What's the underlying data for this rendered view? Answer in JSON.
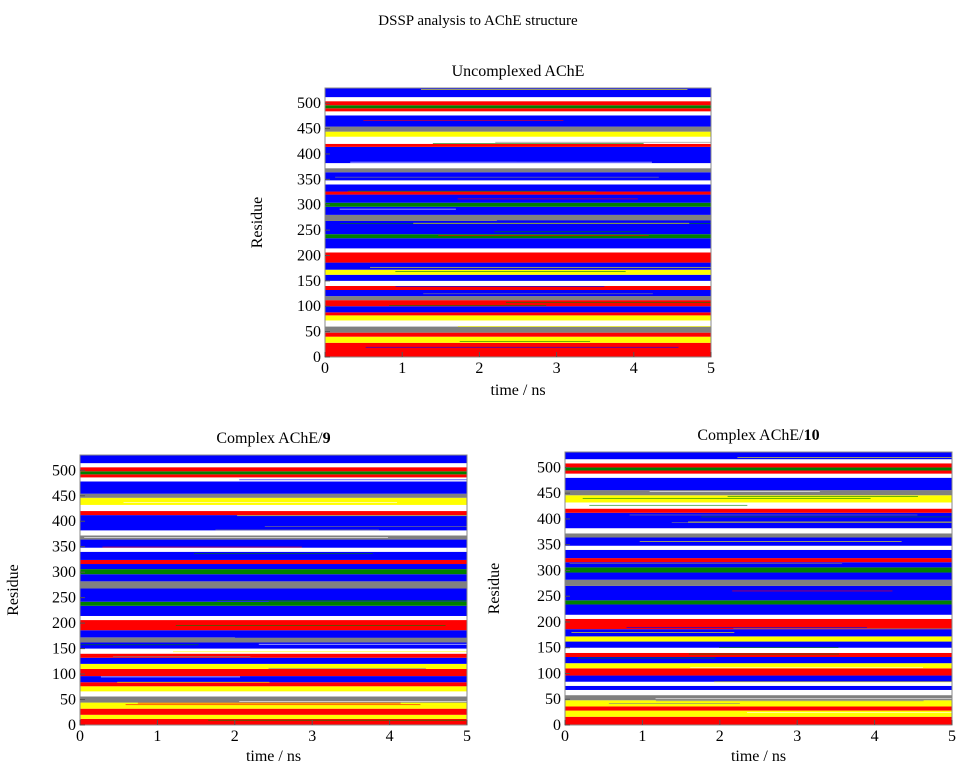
{
  "figure": {
    "title": "DSSP analysis to AChE structure"
  },
  "colors": {
    "coil": "#ffffff",
    "strand": "#ff0000",
    "bridge": "#000000",
    "bend": "#008000",
    "turn": "#ffff00",
    "alpha_helix": "#0000ff",
    "helix_5": "#800080",
    "helix_3": "#808080",
    "frame": "#888888"
  },
  "chart_data": [
    {
      "type": "heatmap",
      "title": "Uncomplexed AChE",
      "title_prefix": "Uncomplexed AChE",
      "title_bold": "",
      "xlabel": "time / ns",
      "ylabel": "Residue",
      "xlim": [
        0,
        5
      ],
      "ylim": [
        0,
        530
      ],
      "xticks": [
        0,
        1,
        2,
        3,
        4,
        5
      ],
      "yticks": [
        0,
        50,
        100,
        150,
        200,
        250,
        300,
        350,
        400,
        450,
        500
      ],
      "grid": false,
      "bands": [
        {
          "y": [
            0,
            28
          ],
          "ss": "strand"
        },
        {
          "y": [
            28,
            40
          ],
          "ss": "turn"
        },
        {
          "y": [
            40,
            48
          ],
          "ss": "strand"
        },
        {
          "y": [
            48,
            60
          ],
          "ss": "helix_3"
        },
        {
          "y": [
            60,
            72
          ],
          "ss": "coil"
        },
        {
          "y": [
            72,
            82
          ],
          "ss": "turn"
        },
        {
          "y": [
            82,
            88
          ],
          "ss": "strand"
        },
        {
          "y": [
            88,
            100
          ],
          "ss": "alpha_helix"
        },
        {
          "y": [
            100,
            112
          ],
          "ss": "strand"
        },
        {
          "y": [
            112,
            120
          ],
          "ss": "helix_3"
        },
        {
          "y": [
            120,
            132
          ],
          "ss": "alpha_helix"
        },
        {
          "y": [
            132,
            140
          ],
          "ss": "strand"
        },
        {
          "y": [
            140,
            150
          ],
          "ss": "coil"
        },
        {
          "y": [
            150,
            162
          ],
          "ss": "alpha_helix"
        },
        {
          "y": [
            162,
            172
          ],
          "ss": "turn"
        },
        {
          "y": [
            172,
            186
          ],
          "ss": "alpha_helix"
        },
        {
          "y": [
            186,
            206
          ],
          "ss": "strand"
        },
        {
          "y": [
            206,
            214
          ],
          "ss": "coil"
        },
        {
          "y": [
            214,
            234
          ],
          "ss": "alpha_helix"
        },
        {
          "y": [
            234,
            242
          ],
          "ss": "bend"
        },
        {
          "y": [
            242,
            268
          ],
          "ss": "alpha_helix"
        },
        {
          "y": [
            268,
            280
          ],
          "ss": "helix_3"
        },
        {
          "y": [
            280,
            296
          ],
          "ss": "alpha_helix"
        },
        {
          "y": [
            296,
            304
          ],
          "ss": "bend"
        },
        {
          "y": [
            304,
            320
          ],
          "ss": "alpha_helix"
        },
        {
          "y": [
            320,
            326
          ],
          "ss": "strand"
        },
        {
          "y": [
            326,
            340
          ],
          "ss": "alpha_helix"
        },
        {
          "y": [
            340,
            348
          ],
          "ss": "coil"
        },
        {
          "y": [
            348,
            364
          ],
          "ss": "alpha_helix"
        },
        {
          "y": [
            364,
            372
          ],
          "ss": "helix_3"
        },
        {
          "y": [
            372,
            382
          ],
          "ss": "coil"
        },
        {
          "y": [
            382,
            414
          ],
          "ss": "alpha_helix"
        },
        {
          "y": [
            414,
            420
          ],
          "ss": "strand"
        },
        {
          "y": [
            420,
            434
          ],
          "ss": "coil"
        },
        {
          "y": [
            434,
            444
          ],
          "ss": "turn"
        },
        {
          "y": [
            444,
            454
          ],
          "ss": "helix_3"
        },
        {
          "y": [
            454,
            476
          ],
          "ss": "alpha_helix"
        },
        {
          "y": [
            476,
            484
          ],
          "ss": "coil"
        },
        {
          "y": [
            484,
            490
          ],
          "ss": "strand"
        },
        {
          "y": [
            490,
            496
          ],
          "ss": "bend"
        },
        {
          "y": [
            496,
            504
          ],
          "ss": "strand"
        },
        {
          "y": [
            504,
            512
          ],
          "ss": "coil"
        },
        {
          "y": [
            512,
            530
          ],
          "ss": "alpha_helix"
        }
      ]
    },
    {
      "type": "heatmap",
      "title": "Complex AChE/9",
      "title_prefix": "Complex AChE/",
      "title_bold": "9",
      "xlabel": "time / ns",
      "ylabel": "Residue",
      "xlim": [
        0,
        5
      ],
      "ylim": [
        0,
        530
      ],
      "xticks": [
        0,
        1,
        2,
        3,
        4,
        5
      ],
      "yticks": [
        0,
        50,
        100,
        150,
        200,
        250,
        300,
        350,
        400,
        450,
        500
      ],
      "grid": false,
      "bands": [
        {
          "y": [
            0,
            12
          ],
          "ss": "strand"
        },
        {
          "y": [
            12,
            20
          ],
          "ss": "turn"
        },
        {
          "y": [
            20,
            32
          ],
          "ss": "strand"
        },
        {
          "y": [
            32,
            44
          ],
          "ss": "turn"
        },
        {
          "y": [
            44,
            56
          ],
          "ss": "helix_3"
        },
        {
          "y": [
            56,
            66
          ],
          "ss": "coil"
        },
        {
          "y": [
            66,
            76
          ],
          "ss": "turn"
        },
        {
          "y": [
            76,
            84
          ],
          "ss": "strand"
        },
        {
          "y": [
            84,
            96
          ],
          "ss": "alpha_helix"
        },
        {
          "y": [
            96,
            110
          ],
          "ss": "strand"
        },
        {
          "y": [
            110,
            120
          ],
          "ss": "turn"
        },
        {
          "y": [
            120,
            132
          ],
          "ss": "alpha_helix"
        },
        {
          "y": [
            132,
            140
          ],
          "ss": "strand"
        },
        {
          "y": [
            140,
            150
          ],
          "ss": "coil"
        },
        {
          "y": [
            150,
            162
          ],
          "ss": "alpha_helix"
        },
        {
          "y": [
            162,
            172
          ],
          "ss": "helix_3"
        },
        {
          "y": [
            172,
            186
          ],
          "ss": "alpha_helix"
        },
        {
          "y": [
            186,
            206
          ],
          "ss": "strand"
        },
        {
          "y": [
            206,
            214
          ],
          "ss": "coil"
        },
        {
          "y": [
            214,
            234
          ],
          "ss": "alpha_helix"
        },
        {
          "y": [
            234,
            242
          ],
          "ss": "bend"
        },
        {
          "y": [
            242,
            268
          ],
          "ss": "alpha_helix"
        },
        {
          "y": [
            268,
            282
          ],
          "ss": "helix_3"
        },
        {
          "y": [
            282,
            296
          ],
          "ss": "alpha_helix"
        },
        {
          "y": [
            296,
            306
          ],
          "ss": "bend"
        },
        {
          "y": [
            306,
            316
          ],
          "ss": "alpha_helix"
        },
        {
          "y": [
            316,
            324
          ],
          "ss": "strand"
        },
        {
          "y": [
            324,
            340
          ],
          "ss": "alpha_helix"
        },
        {
          "y": [
            340,
            348
          ],
          "ss": "coil"
        },
        {
          "y": [
            348,
            364
          ],
          "ss": "alpha_helix"
        },
        {
          "y": [
            364,
            372
          ],
          "ss": "helix_3"
        },
        {
          "y": [
            372,
            382
          ],
          "ss": "coil"
        },
        {
          "y": [
            382,
            412
          ],
          "ss": "alpha_helix"
        },
        {
          "y": [
            412,
            420
          ],
          "ss": "strand"
        },
        {
          "y": [
            420,
            432
          ],
          "ss": "coil"
        },
        {
          "y": [
            432,
            446
          ],
          "ss": "turn"
        },
        {
          "y": [
            446,
            454
          ],
          "ss": "helix_3"
        },
        {
          "y": [
            454,
            478
          ],
          "ss": "alpha_helix"
        },
        {
          "y": [
            478,
            486
          ],
          "ss": "coil"
        },
        {
          "y": [
            486,
            492
          ],
          "ss": "strand"
        },
        {
          "y": [
            492,
            498
          ],
          "ss": "bend"
        },
        {
          "y": [
            498,
            506
          ],
          "ss": "strand"
        },
        {
          "y": [
            506,
            514
          ],
          "ss": "coil"
        },
        {
          "y": [
            514,
            530
          ],
          "ss": "alpha_helix"
        }
      ]
    },
    {
      "type": "heatmap",
      "title": "Complex AChE/10",
      "title_prefix": "Complex AChE/",
      "title_bold": "10",
      "xlabel": "time / ns",
      "ylabel": "Residue",
      "xlim": [
        0,
        5
      ],
      "ylim": [
        0,
        530
      ],
      "xticks": [
        0,
        1,
        2,
        3,
        4,
        5
      ],
      "yticks": [
        0,
        50,
        100,
        150,
        200,
        250,
        300,
        350,
        400,
        450,
        500
      ],
      "grid": false,
      "bands": [
        {
          "y": [
            0,
            16
          ],
          "ss": "strand"
        },
        {
          "y": [
            16,
            28
          ],
          "ss": "turn"
        },
        {
          "y": [
            28,
            36
          ],
          "ss": "strand"
        },
        {
          "y": [
            36,
            48
          ],
          "ss": "turn"
        },
        {
          "y": [
            48,
            58
          ],
          "ss": "helix_3"
        },
        {
          "y": [
            58,
            68
          ],
          "ss": "coil"
        },
        {
          "y": [
            68,
            76
          ],
          "ss": "alpha_helix"
        },
        {
          "y": [
            76,
            84
          ],
          "ss": "coil"
        },
        {
          "y": [
            84,
            96
          ],
          "ss": "alpha_helix"
        },
        {
          "y": [
            96,
            110
          ],
          "ss": "strand"
        },
        {
          "y": [
            110,
            120
          ],
          "ss": "turn"
        },
        {
          "y": [
            120,
            132
          ],
          "ss": "alpha_helix"
        },
        {
          "y": [
            132,
            140
          ],
          "ss": "strand"
        },
        {
          "y": [
            140,
            150
          ],
          "ss": "coil"
        },
        {
          "y": [
            150,
            162
          ],
          "ss": "alpha_helix"
        },
        {
          "y": [
            162,
            172
          ],
          "ss": "turn"
        },
        {
          "y": [
            172,
            186
          ],
          "ss": "alpha_helix"
        },
        {
          "y": [
            186,
            206
          ],
          "ss": "strand"
        },
        {
          "y": [
            206,
            214
          ],
          "ss": "coil"
        },
        {
          "y": [
            214,
            234
          ],
          "ss": "alpha_helix"
        },
        {
          "y": [
            234,
            242
          ],
          "ss": "bend"
        },
        {
          "y": [
            242,
            270
          ],
          "ss": "alpha_helix"
        },
        {
          "y": [
            270,
            282
          ],
          "ss": "helix_3"
        },
        {
          "y": [
            282,
            296
          ],
          "ss": "alpha_helix"
        },
        {
          "y": [
            296,
            306
          ],
          "ss": "bend"
        },
        {
          "y": [
            306,
            316
          ],
          "ss": "alpha_helix"
        },
        {
          "y": [
            316,
            324
          ],
          "ss": "strand"
        },
        {
          "y": [
            324,
            340
          ],
          "ss": "alpha_helix"
        },
        {
          "y": [
            340,
            348
          ],
          "ss": "coil"
        },
        {
          "y": [
            348,
            364
          ],
          "ss": "alpha_helix"
        },
        {
          "y": [
            364,
            372
          ],
          "ss": "helix_3"
        },
        {
          "y": [
            372,
            382
          ],
          "ss": "coil"
        },
        {
          "y": [
            382,
            412
          ],
          "ss": "alpha_helix"
        },
        {
          "y": [
            412,
            420
          ],
          "ss": "strand"
        },
        {
          "y": [
            420,
            432
          ],
          "ss": "coil"
        },
        {
          "y": [
            432,
            446
          ],
          "ss": "turn"
        },
        {
          "y": [
            446,
            456
          ],
          "ss": "helix_3"
        },
        {
          "y": [
            456,
            480
          ],
          "ss": "alpha_helix"
        },
        {
          "y": [
            480,
            488
          ],
          "ss": "coil"
        },
        {
          "y": [
            488,
            494
          ],
          "ss": "strand"
        },
        {
          "y": [
            494,
            500
          ],
          "ss": "bend"
        },
        {
          "y": [
            500,
            508
          ],
          "ss": "strand"
        },
        {
          "y": [
            508,
            516
          ],
          "ss": "coil"
        },
        {
          "y": [
            516,
            530
          ],
          "ss": "alpha_helix"
        }
      ]
    }
  ]
}
